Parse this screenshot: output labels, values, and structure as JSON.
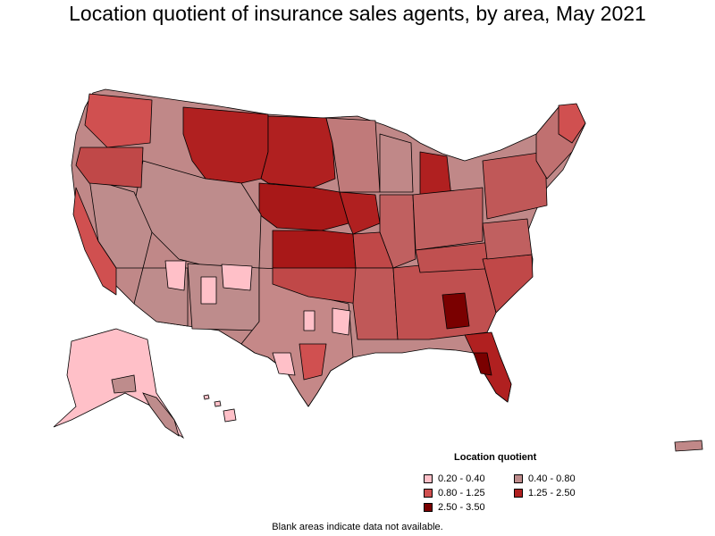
{
  "title": "Location quotient of insurance sales agents, by area, May 2021",
  "legend": {
    "title": "Location quotient",
    "items": [
      {
        "label": "0.20 - 0.40",
        "color": "#ffc0c8"
      },
      {
        "label": "0.40 - 0.80",
        "color": "#be8c8c"
      },
      {
        "label": "0.80 - 1.25",
        "color": "#d05050"
      },
      {
        "label": "1.25 - 2.50",
        "color": "#b02020"
      },
      {
        "label": "2.50 - 3.50",
        "color": "#7a0000"
      }
    ]
  },
  "footnote": "Blank areas indicate data not available."
}
